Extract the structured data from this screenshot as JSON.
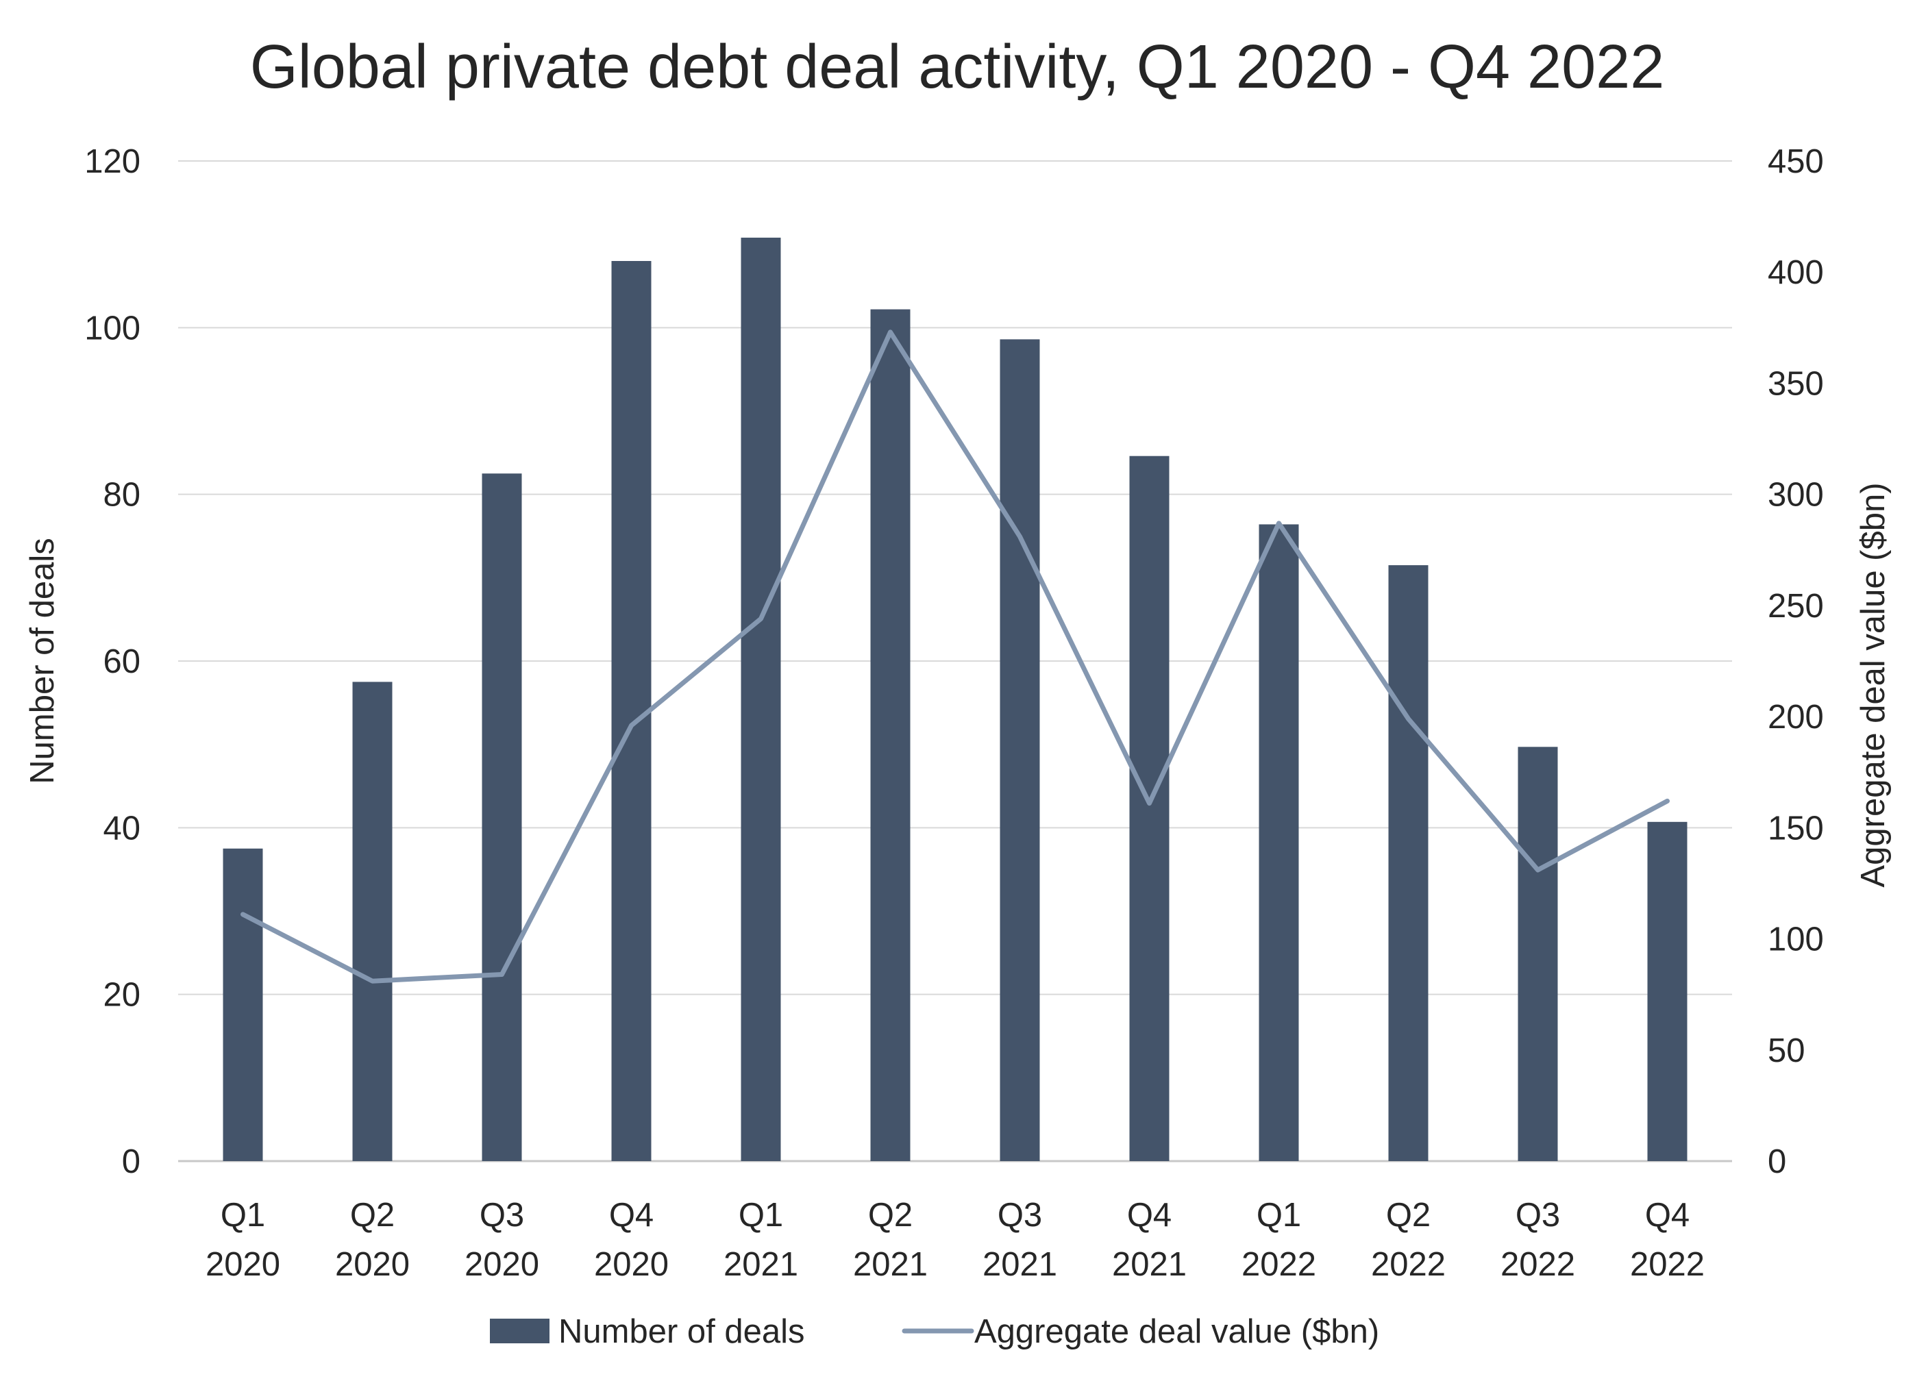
{
  "chart_data": {
    "type": "bar",
    "title": "Global private debt deal activity, Q1 2020 - Q4 2022",
    "categories": [
      [
        "Q1",
        "2020"
      ],
      [
        "Q2",
        "2020"
      ],
      [
        "Q3",
        "2020"
      ],
      [
        "Q4",
        "2020"
      ],
      [
        "Q1",
        "2021"
      ],
      [
        "Q2",
        "2021"
      ],
      [
        "Q3",
        "2021"
      ],
      [
        "Q4",
        "2021"
      ],
      [
        "Q1",
        "2022"
      ],
      [
        "Q2",
        "2022"
      ],
      [
        "Q3",
        "2022"
      ],
      [
        "Q4",
        "2022"
      ]
    ],
    "y_left": {
      "label": "Number of deals",
      "range": [
        0,
        120
      ],
      "ticks": [
        0,
        20,
        40,
        60,
        80,
        100,
        120
      ]
    },
    "y_right": {
      "label": "Aggregate deal value ($bn)",
      "range": [
        0,
        450
      ],
      "ticks": [
        0,
        50,
        100,
        150,
        200,
        250,
        300,
        350,
        400,
        450
      ]
    },
    "grid": true,
    "legend_position": "bottom",
    "series": [
      {
        "name": "Number of deals",
        "type": "bar",
        "axis": "left",
        "color": "#44546a",
        "values": [
          37.5,
          57.5,
          82.5,
          108,
          110.8,
          102.2,
          98.6,
          84.6,
          76.4,
          71.5,
          49.7,
          40.7
        ]
      },
      {
        "name": "Aggregate deal value ($bn)",
        "type": "line",
        "axis": "right",
        "color": "#8497b0",
        "values": [
          111,
          81,
          84,
          196,
          244,
          373,
          281,
          161,
          287,
          199,
          131,
          162
        ]
      }
    ]
  }
}
